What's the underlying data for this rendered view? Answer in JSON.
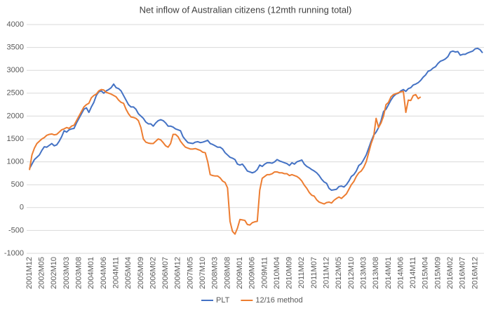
{
  "chart_data": {
    "type": "line",
    "title": "Net inflow of Australian citizens (12mth running total)",
    "categories": [
      "2001M12",
      null,
      null,
      null,
      null,
      "2002M05",
      null,
      null,
      null,
      null,
      "2002M10",
      null,
      null,
      null,
      null,
      "2003M03",
      null,
      null,
      null,
      null,
      "2003M08",
      null,
      null,
      null,
      null,
      "2004M01",
      null,
      null,
      null,
      null,
      "2004M06",
      null,
      null,
      null,
      null,
      "2004M11",
      null,
      null,
      null,
      null,
      "2005M04",
      null,
      null,
      null,
      null,
      "2005M09",
      null,
      null,
      null,
      null,
      "2006M02",
      null,
      null,
      null,
      null,
      "2006M07",
      null,
      null,
      null,
      null,
      "2006M12",
      null,
      null,
      null,
      null,
      "2007M05",
      null,
      null,
      null,
      null,
      "2007M10",
      null,
      null,
      null,
      null,
      "2008M03",
      null,
      null,
      null,
      null,
      "2008M08",
      null,
      null,
      null,
      null,
      "2009M01",
      null,
      null,
      null,
      null,
      "2009M06",
      null,
      null,
      null,
      null,
      "2009M11",
      null,
      null,
      null,
      null,
      "2010M04",
      null,
      null,
      null,
      null,
      "2010M09",
      null,
      null,
      null,
      null,
      "2011M02",
      null,
      null,
      null,
      null,
      "2011M07",
      null,
      null,
      null,
      null,
      "2011M12",
      null,
      null,
      null,
      null,
      "2012M05",
      null,
      null,
      null,
      null,
      "2012M10",
      null,
      null,
      null,
      null,
      "2013M03",
      null,
      null,
      null,
      null,
      "2013M08",
      null,
      null,
      null,
      null,
      "2014M01",
      null,
      null,
      null,
      null,
      "2014M06",
      null,
      null,
      null,
      null,
      "2014M11",
      null,
      null,
      null,
      null,
      "2015M04",
      null,
      null,
      null,
      null,
      "2015M09",
      null,
      null,
      null,
      null,
      "2016M02",
      null,
      null,
      null,
      null,
      "2016M07",
      null,
      null,
      null,
      null,
      "2016M12",
      null,
      null,
      null
    ],
    "series": [
      {
        "name": "PLT",
        "color": "#4472c4",
        "values": [
          850,
          950,
          1050,
          1100,
          1150,
          1250,
          1330,
          1320,
          1360,
          1400,
          1350,
          1370,
          1450,
          1550,
          1680,
          1650,
          1700,
          1720,
          1730,
          1850,
          1950,
          2050,
          2150,
          2180,
          2080,
          2200,
          2300,
          2450,
          2530,
          2550,
          2500,
          2550,
          2580,
          2620,
          2700,
          2620,
          2600,
          2550,
          2450,
          2350,
          2250,
          2200,
          2200,
          2150,
          2050,
          2000,
          1950,
          1870,
          1830,
          1830,
          1780,
          1850,
          1900,
          1920,
          1900,
          1850,
          1780,
          1780,
          1760,
          1720,
          1700,
          1680,
          1550,
          1480,
          1420,
          1410,
          1400,
          1430,
          1440,
          1420,
          1430,
          1450,
          1470,
          1400,
          1380,
          1350,
          1320,
          1320,
          1280,
          1200,
          1150,
          1100,
          1080,
          1050,
          950,
          930,
          950,
          880,
          800,
          780,
          760,
          780,
          830,
          930,
          900,
          950,
          980,
          980,
          970,
          1000,
          1050,
          1020,
          1000,
          980,
          960,
          920,
          980,
          950,
          1000,
          1020,
          1040,
          950,
          900,
          870,
          830,
          800,
          760,
          700,
          620,
          560,
          530,
          420,
          380,
          390,
          400,
          460,
          470,
          450,
          500,
          580,
          680,
          720,
          800,
          920,
          960,
          1050,
          1150,
          1300,
          1450,
          1580,
          1650,
          1750,
          1900,
          2100,
          2150,
          2250,
          2350,
          2430,
          2480,
          2500,
          2550,
          2580,
          2540,
          2600,
          2620,
          2680,
          2700,
          2730,
          2780,
          2850,
          2900,
          2980,
          3000,
          3050,
          3080,
          3150,
          3200,
          3220,
          3250,
          3300,
          3400,
          3420,
          3400,
          3410,
          3330,
          3350,
          3350,
          3380,
          3400,
          3420,
          3470,
          3480,
          3450,
          3380
        ]
      },
      {
        "name": "12/16 method",
        "color": "#ed7d31",
        "values": [
          820,
          1150,
          1300,
          1400,
          1450,
          1500,
          1530,
          1580,
          1600,
          1610,
          1590,
          1600,
          1650,
          1700,
          1720,
          1750,
          1730,
          1780,
          1800,
          1900,
          2000,
          2100,
          2200,
          2250,
          2280,
          2400,
          2450,
          2480,
          2550,
          2580,
          2570,
          2520,
          2500,
          2480,
          2450,
          2420,
          2350,
          2300,
          2280,
          2150,
          2050,
          1980,
          1970,
          1950,
          1900,
          1750,
          1500,
          1430,
          1410,
          1400,
          1400,
          1450,
          1500,
          1480,
          1420,
          1350,
          1320,
          1400,
          1600,
          1600,
          1550,
          1450,
          1380,
          1320,
          1300,
          1280,
          1280,
          1290,
          1270,
          1250,
          1210,
          1200,
          1000,
          720,
          700,
          690,
          690,
          650,
          580,
          550,
          430,
          -300,
          -520,
          -580,
          -450,
          -260,
          -270,
          -280,
          -370,
          -380,
          -330,
          -310,
          -300,
          380,
          640,
          680,
          720,
          720,
          740,
          780,
          780,
          760,
          760,
          740,
          740,
          700,
          720,
          700,
          680,
          640,
          580,
          490,
          420,
          330,
          270,
          250,
          170,
          120,
          100,
          80,
          110,
          120,
          100,
          160,
          200,
          230,
          200,
          250,
          300,
          400,
          500,
          570,
          680,
          760,
          800,
          880,
          1000,
          1200,
          1400,
          1550,
          1950,
          1750,
          1850,
          2000,
          2250,
          2300,
          2420,
          2470,
          2490,
          2510,
          2530,
          2540,
          2080,
          2350,
          2340,
          2450,
          2470,
          2380,
          2420,
          null,
          null,
          null,
          null,
          null,
          null,
          null,
          null,
          null,
          null,
          null,
          null,
          null,
          null,
          null,
          null,
          null,
          null,
          null,
          null,
          null,
          null,
          null,
          null,
          null
        ]
      }
    ],
    "ylim": [
      -1000,
      4000
    ],
    "yticks": [
      -1000,
      -500,
      0,
      500,
      1000,
      1500,
      2000,
      2500,
      3000,
      3500,
      4000
    ],
    "grid": true,
    "legend": "bottom"
  }
}
